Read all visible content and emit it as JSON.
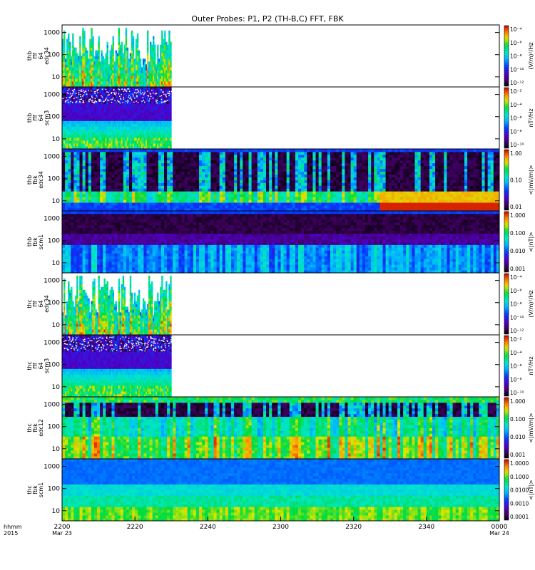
{
  "chart_data": {
    "title": "Outer Probes: P1, P2 (TH-B,C) FFT, FBK",
    "type": "heatmap",
    "x_time_labels": [
      "2200",
      "2220",
      "2240",
      "2300",
      "2320",
      "2340",
      "0000"
    ],
    "x_date_labels": [
      "Mar 23",
      "",
      "",
      "",
      "",
      "",
      "Mar 24"
    ],
    "x_axis_header": [
      "hhmm",
      "2015"
    ],
    "panels": [
      {
        "ylabel": [
          "thb",
          "fff",
          "64",
          "edc34"
        ],
        "yscale": "log",
        "yticks": [
          "10",
          "100",
          "1000"
        ],
        "colorbar": {
          "label": "(V/m)²/Hz",
          "ticks": [
            "10⁻¹²",
            "10⁻¹⁰",
            "10⁻⁸",
            "10⁻⁶",
            "10⁻⁴"
          ]
        },
        "data_extent_fraction": 0.25,
        "style": "fff_e"
      },
      {
        "ylabel": [
          "thb",
          "fff",
          "64",
          "scm3"
        ],
        "yscale": "log",
        "yticks": [
          "10",
          "100",
          "1000"
        ],
        "colorbar": {
          "label": "nT²/Hz",
          "ticks": [
            "10⁻¹⁰",
            "10⁻⁸",
            "10⁻⁶",
            "10⁻⁴",
            "10⁻²"
          ]
        },
        "data_extent_fraction": 0.25,
        "style": "fff_b"
      },
      {
        "ylabel": [
          "thb",
          "fbk",
          "edc34"
        ],
        "yscale": "log",
        "yticks": [
          "10",
          "100",
          "1000"
        ],
        "colorbar": {
          "label": "<|mV/m|>",
          "ticks": [
            "0.01",
            "0.10",
            "1.00"
          ]
        },
        "data_extent_fraction": 1.0,
        "style": "fbk_e_b"
      },
      {
        "ylabel": [
          "thb",
          "fbk",
          "scm1"
        ],
        "yscale": "log",
        "yticks": [
          "10",
          "100",
          "1000"
        ],
        "colorbar": {
          "label": "<|nT|>",
          "ticks": [
            "0.001",
            "0.010",
            "0.100",
            "1.000"
          ]
        },
        "data_extent_fraction": 1.0,
        "style": "fbk_b_b"
      },
      {
        "ylabel": [
          "thc",
          "fff",
          "64",
          "edc34"
        ],
        "yscale": "log",
        "yticks": [
          "10",
          "100",
          "1000"
        ],
        "colorbar": {
          "label": "(V/m)²/Hz",
          "ticks": [
            "10⁻¹²",
            "10⁻¹⁰",
            "10⁻⁸",
            "10⁻⁶",
            "10⁻⁴"
          ]
        },
        "data_extent_fraction": 0.25,
        "style": "fff_e"
      },
      {
        "ylabel": [
          "thc",
          "fff",
          "64",
          "scm3"
        ],
        "yscale": "log",
        "yticks": [
          "10",
          "100",
          "1000"
        ],
        "colorbar": {
          "label": "nT²/Hz",
          "ticks": [
            "10⁻¹⁰",
            "10⁻⁸",
            "10⁻⁶",
            "10⁻⁴",
            "10⁻²"
          ]
        },
        "data_extent_fraction": 0.25,
        "style": "fff_b"
      },
      {
        "ylabel": [
          "thc",
          "fbk",
          "edc12"
        ],
        "yscale": "log",
        "yticks": [
          "10",
          "100",
          "1000"
        ],
        "colorbar": {
          "label": "<|mV/m|>",
          "ticks": [
            "0.001",
            "0.010",
            "0.100",
            "1.000"
          ]
        },
        "data_extent_fraction": 1.0,
        "style": "fbk_e_c"
      },
      {
        "ylabel": [
          "thc",
          "fbk",
          "scm1"
        ],
        "yscale": "log",
        "yticks": [
          "10",
          "100",
          "1000"
        ],
        "colorbar": {
          "label": "<|nT|>",
          "ticks": [
            "0.0001",
            "0.0010",
            "0.0100",
            "0.1000",
            "1.0000"
          ]
        },
        "data_extent_fraction": 1.0,
        "style": "fbk_b_c"
      }
    ]
  }
}
